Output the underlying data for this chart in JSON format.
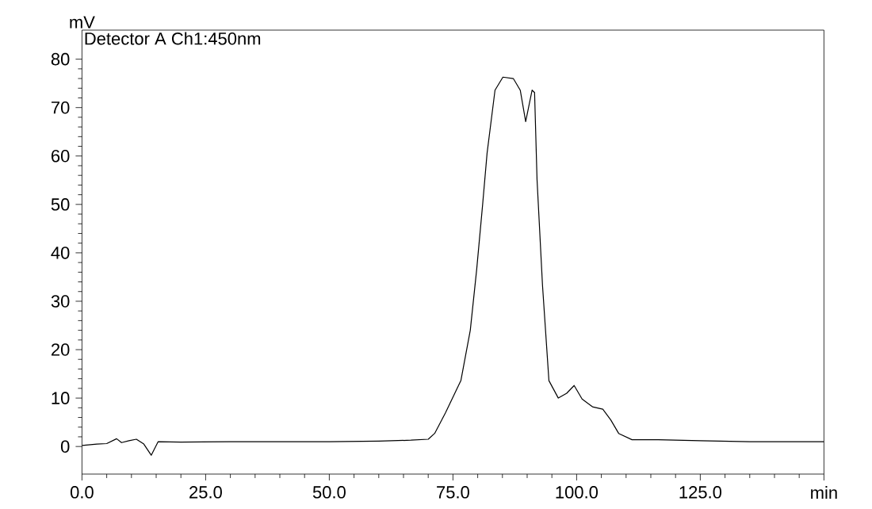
{
  "chart_data": {
    "type": "line",
    "ylabel": "mV",
    "annotations": [
      "Detector A Ch1:450nm"
    ],
    "xlim": [
      0,
      150
    ],
    "ylim": [
      -5.7,
      86
    ],
    "xticks": [
      {
        "value": 0,
        "label": "0.0"
      },
      {
        "value": 25,
        "label": "25.0"
      },
      {
        "value": 50,
        "label": "50.0"
      },
      {
        "value": 75,
        "label": "75.0"
      },
      {
        "value": 100,
        "label": "100.0"
      },
      {
        "value": 125,
        "label": "125.0"
      },
      {
        "value": 150,
        "label": "min"
      }
    ],
    "yticks": [
      0,
      10,
      20,
      30,
      40,
      50,
      60,
      70,
      80
    ],
    "grid": false,
    "marker": "none",
    "line_style": "solid",
    "series": [
      {
        "color": "#000000",
        "x": [
          0,
          3,
          5,
          7,
          8,
          9.5,
          11,
          12.5,
          14,
          15.4,
          20,
          30,
          40,
          50,
          60,
          66.5,
          70,
          71.3,
          73.5,
          76.6,
          78.5,
          79.8,
          81,
          81.9,
          83.5,
          85.1,
          87.2,
          88.6,
          89.7,
          91.0,
          91.5,
          92.0,
          93.1,
          94.4,
          96.3,
          98,
          99.5,
          101.1,
          103.2,
          105.3,
          106.9,
          108.5,
          111.2,
          116.5,
          125,
          135,
          150
        ],
        "values": [
          0.2,
          0.5,
          0.6,
          1.6,
          0.8,
          1.2,
          1.5,
          0.5,
          -1.8,
          1.0,
          0.9,
          1.0,
          1.0,
          1.0,
          1.1,
          1.3,
          1.5,
          2.7,
          7,
          13.6,
          24,
          36.6,
          50,
          60.6,
          73.6,
          76.3,
          76.0,
          73.6,
          67.1,
          73.6,
          73.1,
          55.1,
          33.3,
          13.6,
          10.0,
          11,
          12.6,
          9.8,
          8.2,
          7.7,
          5.5,
          2.7,
          1.4,
          1.4,
          1.2,
          1.0,
          1.0
        ]
      }
    ]
  }
}
